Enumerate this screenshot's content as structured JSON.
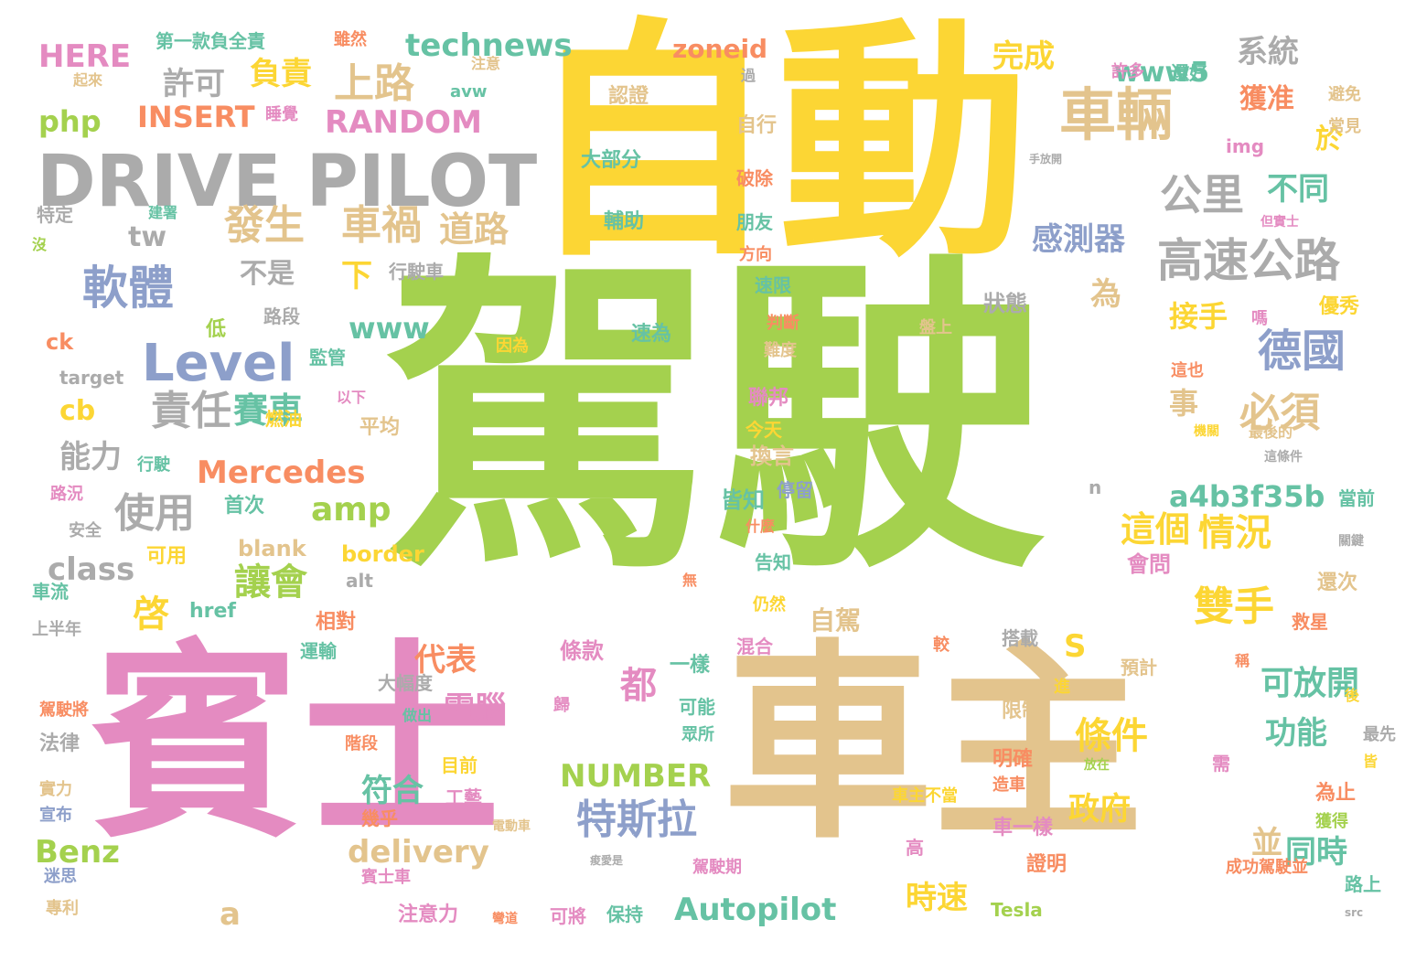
{
  "words": [
    "駕駛",
    "自動",
    "賓士",
    "車主",
    "DRIVE PILOT",
    "車輛",
    "Level",
    "軟體",
    "特斯拉",
    "高速公路",
    "德國",
    "公里",
    "發生",
    "車禍",
    "上路",
    "必須",
    "雙手",
    "道路",
    "責任",
    "使用",
    "讓會",
    "啓",
    "情況",
    "amp",
    "條件",
    "都",
    "這個",
    "可放開",
    "賽車",
    "代表",
    "電腦",
    "政府",
    "符合",
    "Mercedes",
    "Benz",
    "Autopilot",
    "NUMBER",
    "delivery",
    "a4b3f35b",
    "功能",
    "同時",
    "時速",
    "並",
    "technews",
    "php",
    "INSERT",
    "RANDOM",
    "HERE",
    "zoneid",
    "www5",
    "系統",
    "完成",
    "許可",
    "負責",
    "獲准",
    "於",
    "不同",
    "感測器",
    "接手",
    "為",
    "事",
    "不是",
    "下",
    "tw",
    "cb",
    "能力",
    "class",
    "a",
    "S",
    "www",
    "第一款負全責",
    "雖然",
    "睡覺",
    "注意",
    "avw",
    "起來",
    "還好",
    "許多",
    "認證",
    "大部分",
    "輔助",
    "速為",
    "自行",
    "破除",
    "朋友",
    "方向",
    "速限",
    "判斷",
    "難度",
    "聯邦",
    "今天",
    "換言",
    "皆知",
    "什麼",
    "告知",
    "仍然",
    "混合",
    "無",
    "img",
    "常見",
    "避免",
    "優秀",
    "嗎",
    "但實士",
    "手放開",
    "狀態",
    "盤上",
    "因為",
    "這也",
    "這條件",
    "最後的",
    "當前",
    "關鍵",
    "還次",
    "救星",
    "搭載",
    "預計",
    "稱",
    "後",
    "進",
    "最先",
    "皆",
    "需",
    "限制",
    "眾所",
    "可能",
    "一樣",
    "自駕",
    "較",
    "放在",
    "車主不當",
    "為止",
    "獲得",
    "明確",
    "造車",
    "車一樣",
    "證明",
    "成功駕駛並",
    "高",
    "Tesla",
    "路上",
    "src",
    "可將",
    "保持",
    "彎道",
    "注意力",
    "賓士車",
    "會問",
    "路段",
    "監管",
    "行駛車",
    "燃油",
    "平均",
    "以下",
    "目前",
    "工藝",
    "幾乎",
    "電動車",
    "痠愛是",
    "駕駛期",
    "階段",
    "相對",
    "運輸",
    "大幅度",
    "做出",
    "歸",
    "條款",
    "border",
    "blank",
    "href",
    "alt",
    "可用",
    "首次",
    "行駛",
    "路況",
    "安全",
    "低",
    "ck",
    "target",
    "特定",
    "沒",
    "建署",
    "車流",
    "上半年",
    "駕駛將",
    "法律",
    "實力",
    "宣布",
    "迷思",
    "專利",
    "停留",
    "n",
    "機關",
    "過",
    "這"
  ],
  "colors": {
    "yellow": "#fcd634",
    "green": "#a4d14e",
    "pink": "#e48bc1",
    "tan": "#e3c48d",
    "gray": "#ababab",
    "blue": "#8d9fca",
    "teal": "#66c2a4",
    "orange": "#f88d62",
    "background": "#ffffff"
  }
}
